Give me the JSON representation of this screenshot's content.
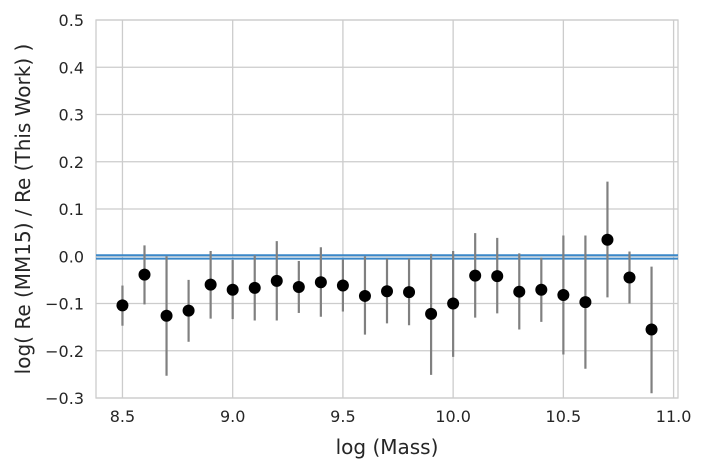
{
  "chart_data": {
    "type": "scatter",
    "xlabel": "log (Mass)",
    "ylabel": "log( Re (MM15) / Re (This Work) )",
    "xlim": [
      8.38,
      11.02
    ],
    "ylim": [
      -0.3,
      0.5
    ],
    "xticks": [
      8.5,
      9.0,
      9.5,
      10.0,
      10.5,
      11.0
    ],
    "xtick_labels": [
      "8.5",
      "9.0",
      "9.5",
      "10.0",
      "10.5",
      "11.0"
    ],
    "yticks": [
      -0.3,
      -0.2,
      -0.1,
      0.0,
      0.1,
      0.2,
      0.3,
      0.4,
      0.5
    ],
    "ytick_labels": [
      "−0.3",
      "−0.2",
      "−0.1",
      "0.0",
      "0.1",
      "0.2",
      "0.3",
      "0.4",
      "0.5"
    ],
    "grid": true,
    "reference_lines": [
      -0.005,
      0.002
    ],
    "colors": {
      "point": "#000000",
      "errorbar": "#808080",
      "reference_line": "#3a87c8",
      "grid": "#cccccc",
      "text": "#262626"
    },
    "points": [
      {
        "x": 8.5,
        "y": -0.104,
        "err_low": -0.147,
        "err_high": -0.062
      },
      {
        "x": 8.6,
        "y": -0.039,
        "err_low": -0.102,
        "err_high": 0.023
      },
      {
        "x": 8.7,
        "y": -0.126,
        "err_low": -0.253,
        "err_high": 0.0
      },
      {
        "x": 8.8,
        "y": -0.115,
        "err_low": -0.181,
        "err_high": -0.05
      },
      {
        "x": 8.9,
        "y": -0.06,
        "err_low": -0.132,
        "err_high": 0.011
      },
      {
        "x": 9.0,
        "y": -0.071,
        "err_low": -0.133,
        "err_high": -0.008
      },
      {
        "x": 9.1,
        "y": -0.067,
        "err_low": -0.136,
        "err_high": 0.002
      },
      {
        "x": 9.2,
        "y": -0.052,
        "err_low": -0.136,
        "err_high": 0.032
      },
      {
        "x": 9.3,
        "y": -0.065,
        "err_low": -0.12,
        "err_high": -0.01
      },
      {
        "x": 9.4,
        "y": -0.055,
        "err_low": -0.128,
        "err_high": 0.019
      },
      {
        "x": 9.5,
        "y": -0.062,
        "err_low": -0.117,
        "err_high": -0.007
      },
      {
        "x": 9.6,
        "y": -0.084,
        "err_low": -0.166,
        "err_high": 0.0
      },
      {
        "x": 9.7,
        "y": -0.074,
        "err_low": -0.142,
        "err_high": -0.005
      },
      {
        "x": 9.8,
        "y": -0.076,
        "err_low": -0.146,
        "err_high": -0.005
      },
      {
        "x": 9.9,
        "y": -0.122,
        "err_low": -0.251,
        "err_high": 0.005
      },
      {
        "x": 10.0,
        "y": -0.1,
        "err_low": -0.213,
        "err_high": 0.011
      },
      {
        "x": 10.1,
        "y": -0.041,
        "err_low": -0.13,
        "err_high": 0.049
      },
      {
        "x": 10.2,
        "y": -0.042,
        "err_low": -0.121,
        "err_high": 0.039
      },
      {
        "x": 10.3,
        "y": -0.075,
        "err_low": -0.155,
        "err_high": 0.006
      },
      {
        "x": 10.4,
        "y": -0.071,
        "err_low": -0.139,
        "err_high": -0.003
      },
      {
        "x": 10.5,
        "y": -0.082,
        "err_low": -0.208,
        "err_high": 0.044
      },
      {
        "x": 10.6,
        "y": -0.097,
        "err_low": -0.238,
        "err_high": 0.044
      },
      {
        "x": 10.7,
        "y": 0.035,
        "err_low": -0.087,
        "err_high": 0.158
      },
      {
        "x": 10.8,
        "y": -0.045,
        "err_low": -0.1,
        "err_high": 0.01
      },
      {
        "x": 10.9,
        "y": -0.155,
        "err_low": -0.29,
        "err_high": -0.022
      }
    ]
  }
}
